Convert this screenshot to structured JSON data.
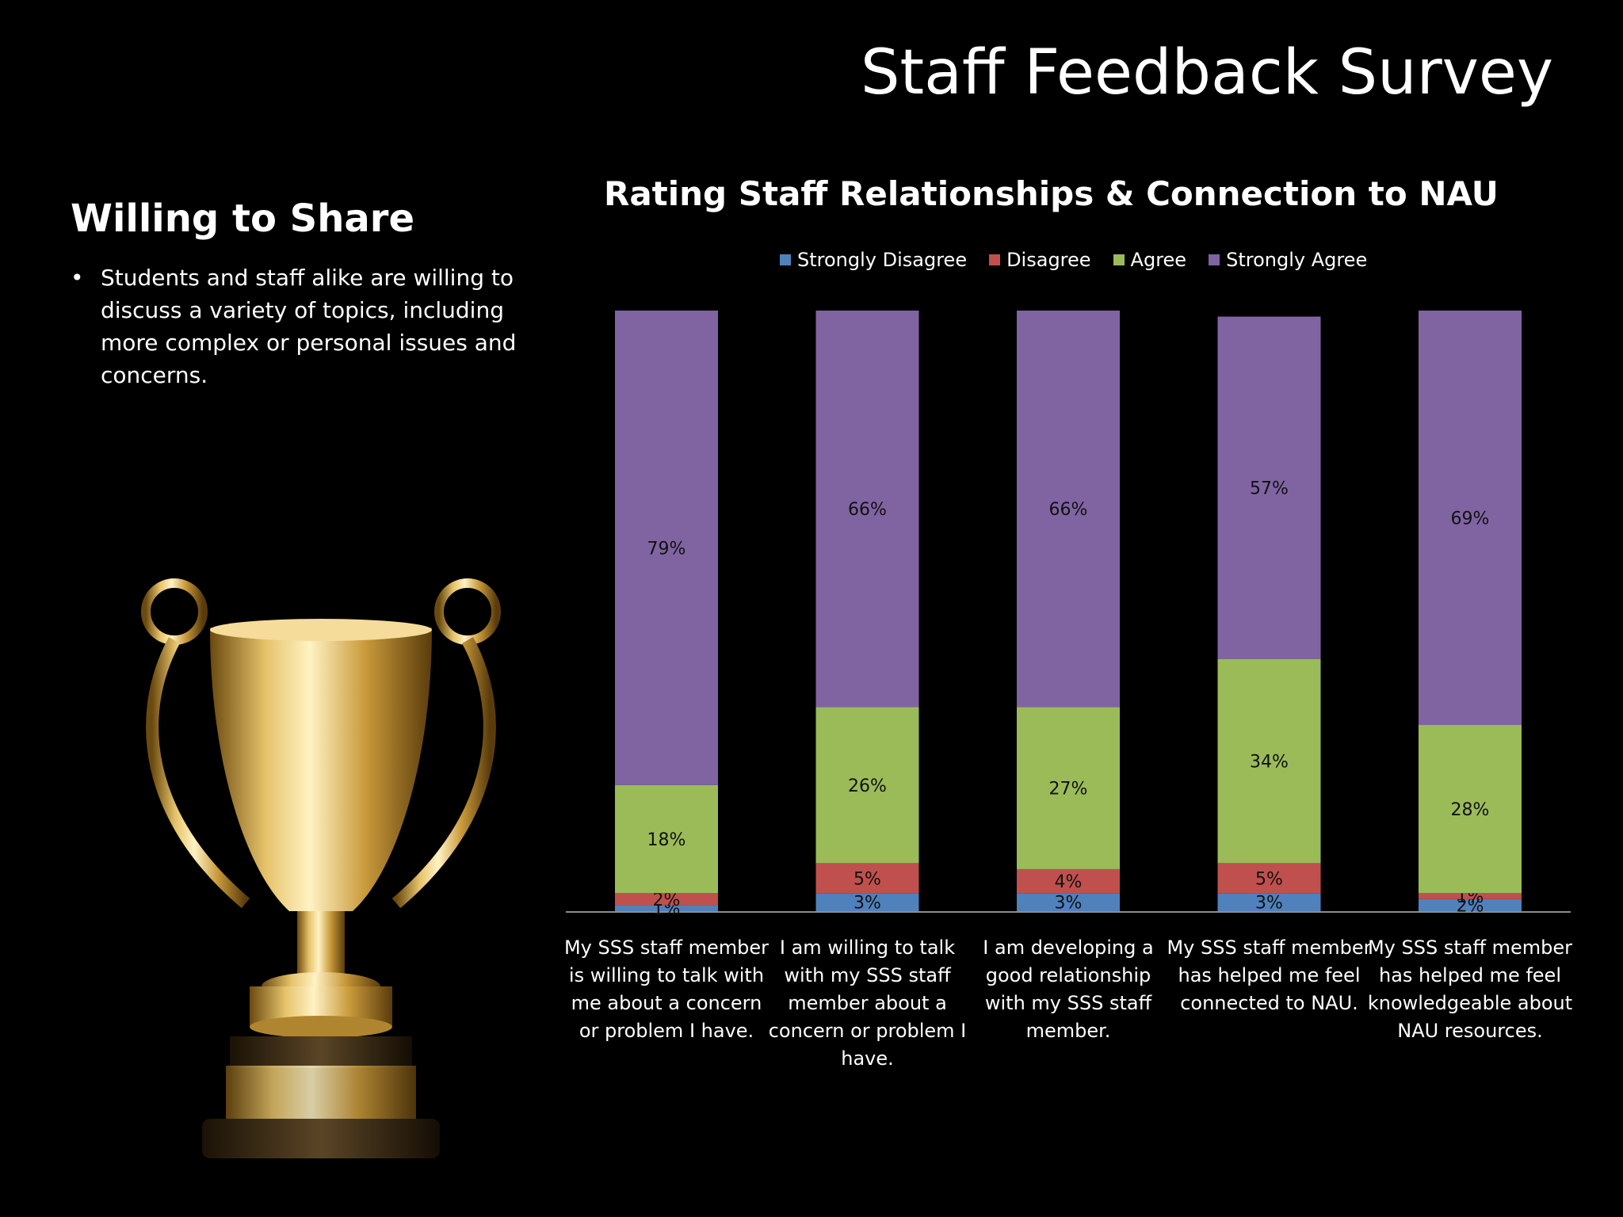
{
  "slide": {
    "title": "Staff Feedback Survey",
    "heading": "Willing to Share",
    "bullets": [
      "Students and staff alike are willing to discuss a variety of topics, including more complex or personal issues and concerns."
    ]
  },
  "chart_data": {
    "type": "bar",
    "stacked": true,
    "title": "Rating Staff Relationships & Connection to NAU",
    "legend_position": "top",
    "grid": false,
    "ylim": [
      0,
      100
    ],
    "categories": [
      [
        "My SSS staff member",
        "is willing to talk with",
        "me about a concern",
        "or problem I have."
      ],
      [
        "I am willing to talk",
        "with my SSS staff",
        "member about a",
        "concern or problem I",
        "have."
      ],
      [
        "I am developing a",
        "good relationship",
        "with my SSS staff",
        "member."
      ],
      [
        "My SSS staff member",
        "has helped me feel",
        "connected to NAU."
      ],
      [
        "My SSS staff member",
        "has helped me feel",
        "knowledgeable about",
        "NAU resources."
      ]
    ],
    "series": [
      {
        "name": "Strongly Disagree",
        "color": "#4F81BD",
        "values": [
          1,
          3,
          3,
          3,
          2
        ],
        "labels": [
          "1%",
          "3%",
          "3%",
          "3%",
          "2%"
        ]
      },
      {
        "name": "Disagree",
        "color": "#C0504D",
        "values": [
          2,
          5,
          4,
          5,
          1
        ],
        "labels": [
          "2%",
          "5%",
          "4%",
          "5%",
          "1%"
        ]
      },
      {
        "name": "Agree",
        "color": "#9BBB59",
        "values": [
          18,
          26,
          27,
          34,
          28
        ],
        "labels": [
          "18%",
          "26%",
          "27%",
          "34%",
          "28%"
        ]
      },
      {
        "name": "Strongly Agree",
        "color": "#8064A2",
        "values": [
          79,
          66,
          66,
          57,
          69
        ],
        "labels": [
          "79%",
          "66%",
          "66%",
          "57%",
          "69%"
        ]
      }
    ]
  }
}
